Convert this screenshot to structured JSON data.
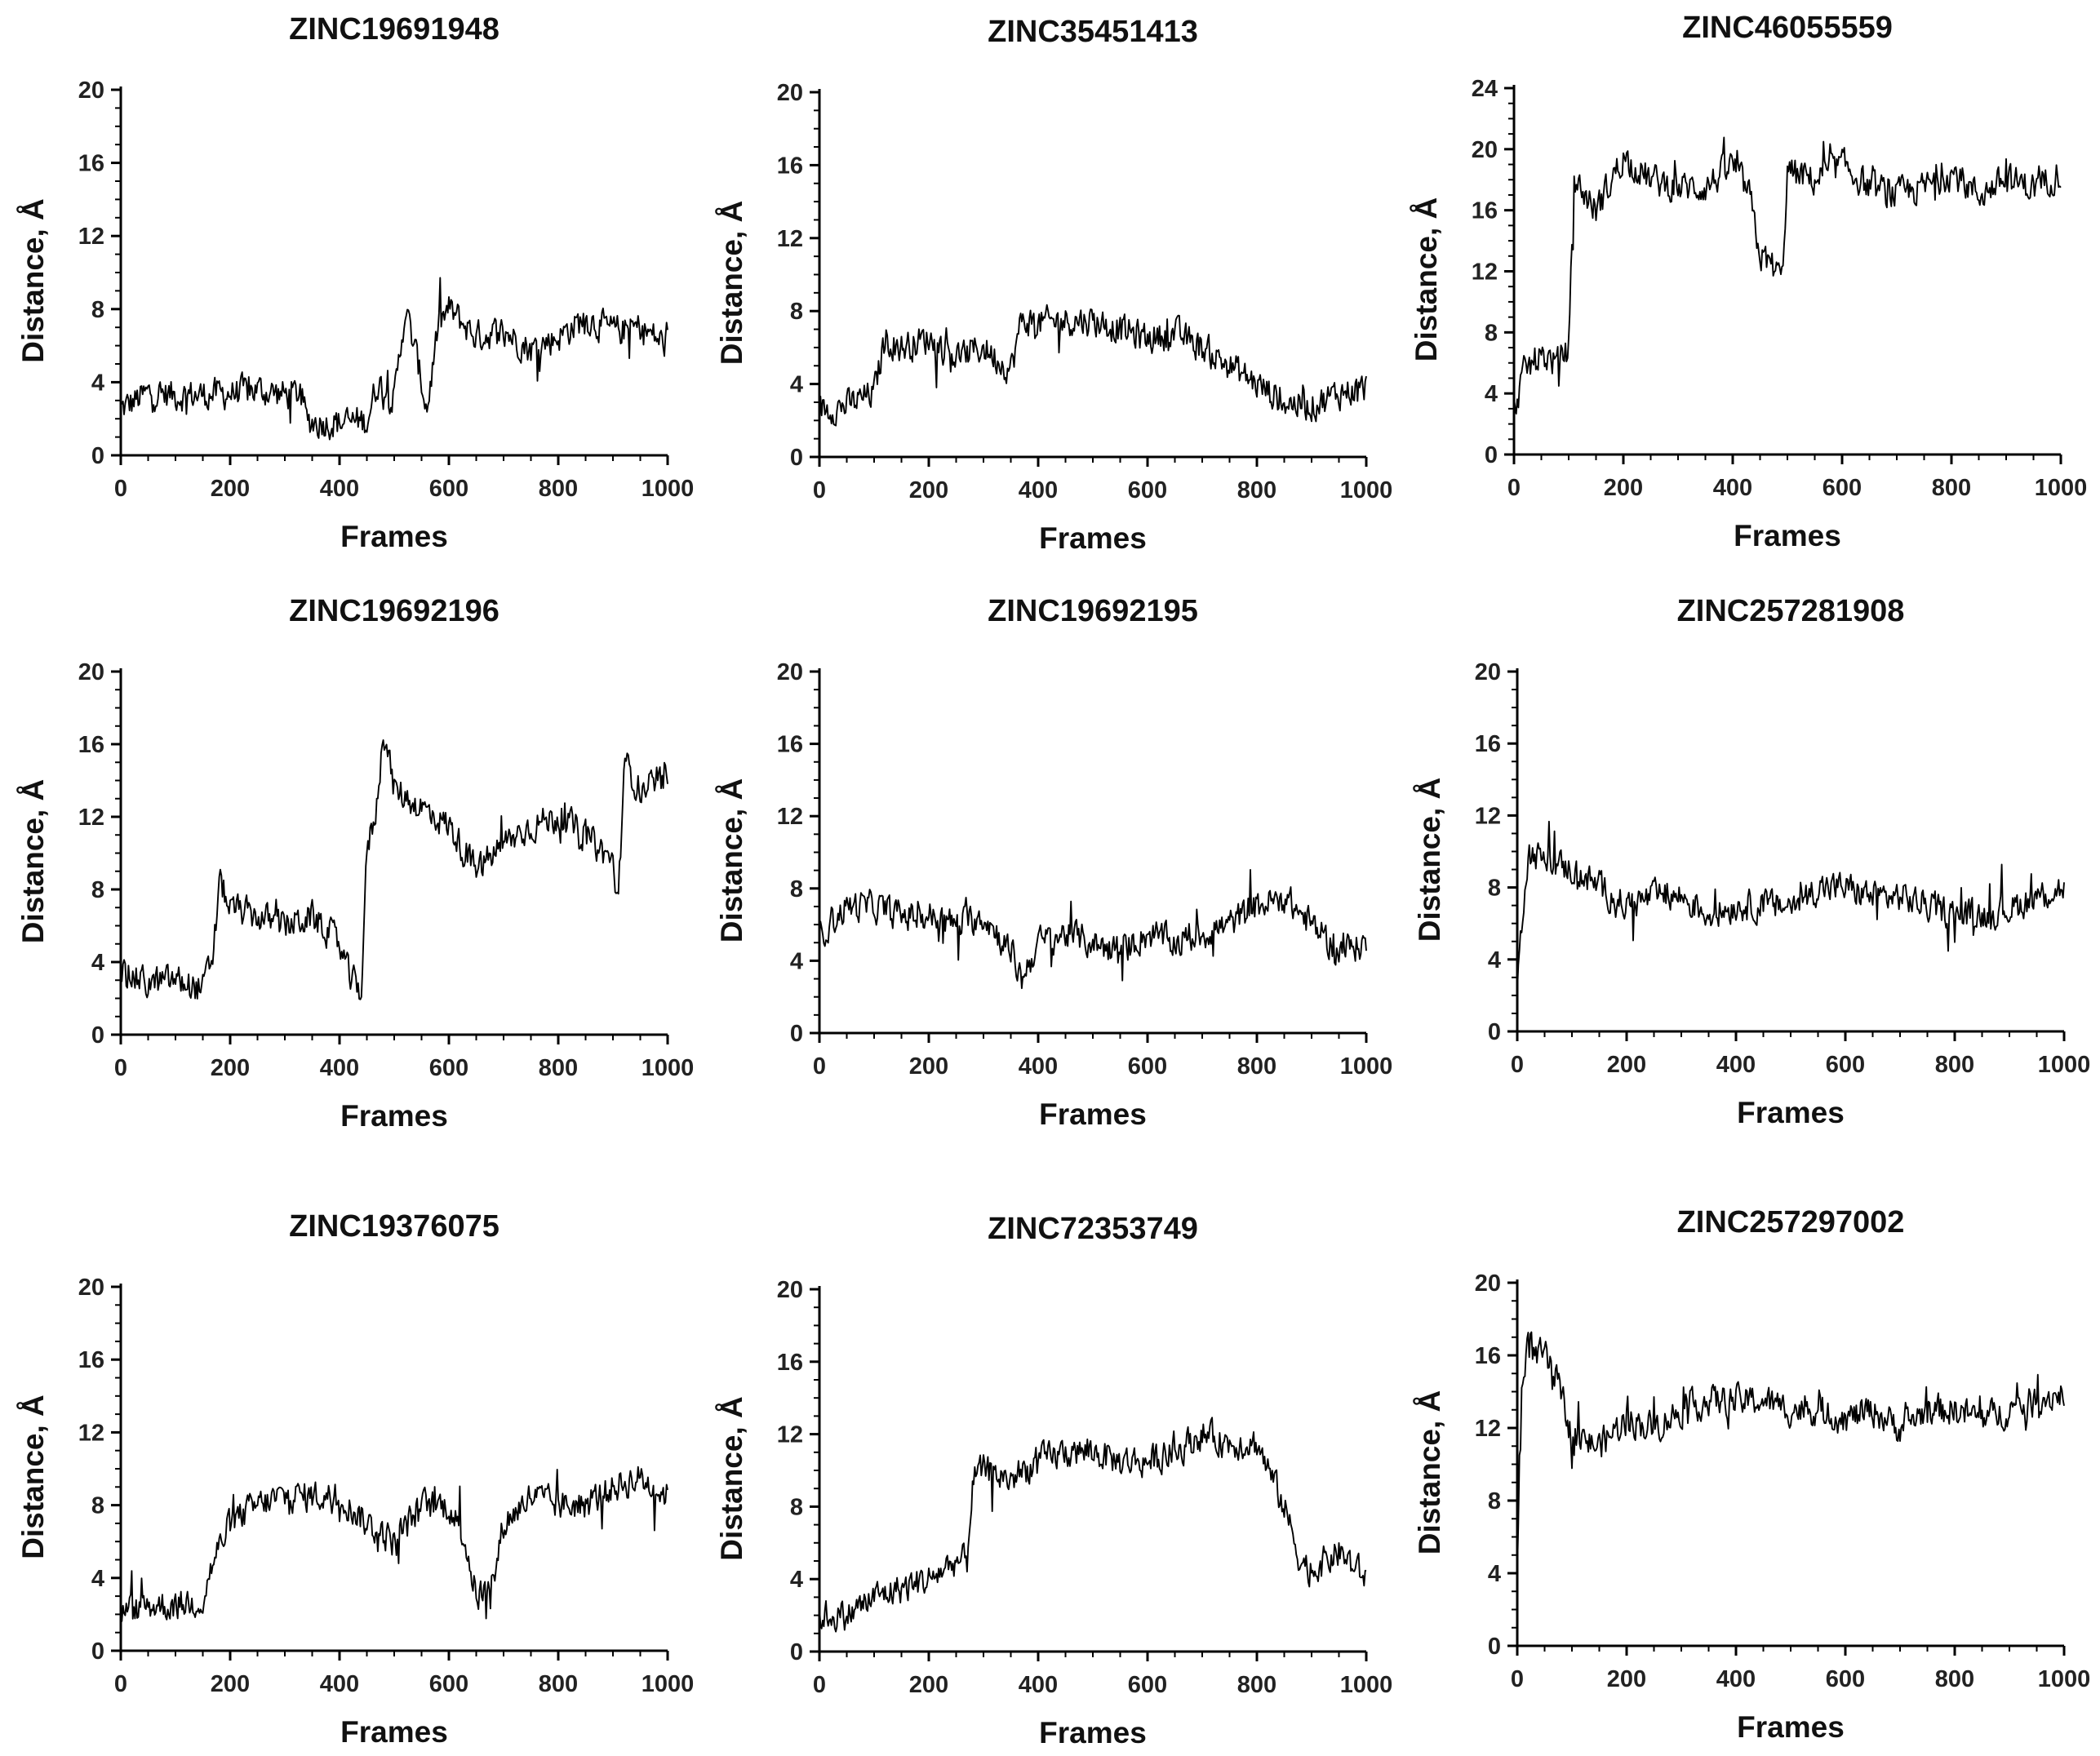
{
  "chart_data": [
    {
      "type": "line",
      "title": "ZINC19691948",
      "xlabel": "Frames",
      "ylabel": "Distance, Å",
      "xlim": [
        0,
        1000
      ],
      "ylim": [
        0,
        20
      ],
      "xticks": [
        "0",
        "200",
        "400",
        "600",
        "800",
        "1000"
      ],
      "yticks": [
        "0",
        "4",
        "8",
        "12",
        "16",
        "20"
      ],
      "x": [
        0,
        50,
        100,
        150,
        200,
        250,
        300,
        330,
        340,
        360,
        400,
        450,
        470,
        500,
        520,
        540,
        560,
        580,
        600,
        650,
        700,
        750,
        800,
        850,
        900,
        950,
        1000
      ],
      "series": [
        {
          "name": "ZINC19691948",
          "values": [
            2.5,
            3.4,
            3.3,
            3.3,
            3.4,
            3.6,
            3.3,
            3.4,
            1.9,
            1.8,
            1.8,
            1.9,
            4.0,
            3.0,
            8.0,
            5.5,
            2.5,
            7.0,
            8.0,
            6.5,
            6.8,
            5.8,
            6.5,
            7.5,
            6.8,
            7.0,
            6.0
          ]
        }
      ]
    },
    {
      "type": "line",
      "title": "ZINC35451413",
      "xlabel": "Frames",
      "ylabel": "Distance, Å",
      "xlim": [
        0,
        1000
      ],
      "ylim": [
        0,
        20
      ],
      "xticks": [
        "0",
        "200",
        "400",
        "600",
        "800",
        "1000"
      ],
      "yticks": [
        "0",
        "4",
        "8",
        "12",
        "16",
        "20"
      ],
      "x": [
        0,
        50,
        100,
        120,
        150,
        200,
        250,
        300,
        350,
        370,
        400,
        450,
        500,
        550,
        600,
        650,
        700,
        750,
        800,
        850,
        900,
        950,
        1000
      ],
      "series": [
        {
          "name": "ZINC35451413",
          "values": [
            2.6,
            2.8,
            3.5,
            6.5,
            6.0,
            6.5,
            5.5,
            6.0,
            4.8,
            7.5,
            7.3,
            7.5,
            7.5,
            7.0,
            6.5,
            6.8,
            6.0,
            5.0,
            4.0,
            3.0,
            2.8,
            3.5,
            3.8
          ]
        }
      ]
    },
    {
      "type": "line",
      "title": "ZINC46055559",
      "xlabel": "Frames",
      "ylabel": "Distance, Å",
      "xlim": [
        0,
        1000
      ],
      "ylim": [
        0,
        24
      ],
      "xticks": [
        "0",
        "200",
        "400",
        "600",
        "800",
        "1000"
      ],
      "yticks": [
        "0",
        "4",
        "8",
        "12",
        "16",
        "20",
        "24"
      ],
      "x": [
        0,
        20,
        50,
        80,
        100,
        110,
        150,
        200,
        250,
        300,
        350,
        400,
        430,
        450,
        470,
        490,
        500,
        550,
        600,
        650,
        700,
        750,
        800,
        850,
        900,
        950,
        1000
      ],
      "series": [
        {
          "name": "ZINC46055559",
          "values": [
            3.0,
            5.5,
            6.5,
            6.0,
            7.0,
            18.0,
            16.0,
            19.5,
            18.0,
            17.5,
            17.5,
            19.0,
            17.0,
            13.0,
            12.5,
            11.5,
            18.5,
            18.0,
            19.0,
            17.5,
            17.0,
            17.5,
            18.5,
            17.0,
            18.0,
            17.5,
            18.5
          ]
        }
      ]
    },
    {
      "type": "line",
      "title": "ZINC19692196",
      "xlabel": "Frames",
      "ylabel": "Distance, Å",
      "xlim": [
        0,
        1000
      ],
      "ylim": [
        0,
        20
      ],
      "xticks": [
        "0",
        "200",
        "400",
        "600",
        "800",
        "1000"
      ],
      "yticks": [
        "0",
        "4",
        "8",
        "12",
        "16",
        "20"
      ],
      "x": [
        0,
        50,
        100,
        150,
        170,
        180,
        200,
        250,
        300,
        350,
        400,
        420,
        440,
        450,
        470,
        480,
        500,
        550,
        600,
        650,
        700,
        750,
        800,
        850,
        900,
        910,
        920,
        950,
        1000
      ],
      "series": [
        {
          "name": "ZINC19692196",
          "values": [
            3.5,
            2.8,
            3.0,
            2.5,
            4.5,
            8.5,
            7.0,
            6.5,
            6.0,
            6.5,
            5.0,
            3.0,
            2.5,
            10.0,
            13.0,
            17.0,
            13.5,
            12.5,
            11.5,
            9.0,
            10.5,
            11.5,
            12.0,
            11.0,
            9.5,
            7.0,
            15.0,
            13.5,
            14.0
          ]
        }
      ]
    },
    {
      "type": "line",
      "title": "ZINC19692195",
      "xlabel": "Frames",
      "ylabel": "Distance, Å",
      "xlim": [
        0,
        1000
      ],
      "ylim": [
        0,
        20
      ],
      "xticks": [
        "0",
        "200",
        "400",
        "600",
        "800",
        "1000"
      ],
      "yticks": [
        "0",
        "4",
        "8",
        "12",
        "16",
        "20"
      ],
      "x": [
        0,
        50,
        100,
        150,
        200,
        250,
        300,
        350,
        370,
        400,
        450,
        500,
        550,
        600,
        650,
        700,
        750,
        800,
        850,
        900,
        950,
        1000
      ],
      "series": [
        {
          "name": "ZINC19692195",
          "values": [
            5.5,
            7.0,
            7.0,
            6.5,
            6.5,
            6.0,
            6.5,
            4.5,
            3.0,
            5.0,
            5.5,
            5.0,
            4.5,
            5.5,
            5.0,
            5.5,
            6.0,
            7.0,
            7.5,
            6.0,
            4.5,
            5.0
          ]
        }
      ]
    },
    {
      "type": "line",
      "title": "ZINC257281908",
      "xlabel": "Frames",
      "ylabel": "Distance, Å",
      "xlim": [
        0,
        1000
      ],
      "ylim": [
        0,
        20
      ],
      "xticks": [
        "0",
        "200",
        "400",
        "600",
        "800",
        "1000"
      ],
      "yticks": [
        "0",
        "4",
        "8",
        "12",
        "16",
        "20"
      ],
      "x": [
        0,
        10,
        20,
        50,
        100,
        150,
        200,
        250,
        300,
        350,
        400,
        450,
        500,
        550,
        600,
        650,
        700,
        750,
        800,
        850,
        900,
        950,
        1000
      ],
      "series": [
        {
          "name": "ZINC257281908",
          "values": [
            2.0,
            7.0,
            10.0,
            9.5,
            9.0,
            8.0,
            7.0,
            7.5,
            7.5,
            6.5,
            7.0,
            7.0,
            7.0,
            8.0,
            8.0,
            7.5,
            7.5,
            7.0,
            6.5,
            6.5,
            6.8,
            7.5,
            8.0
          ]
        }
      ]
    },
    {
      "type": "line",
      "title": "ZINC19376075",
      "xlabel": "Frames",
      "ylabel": "Distance, Å",
      "xlim": [
        0,
        1000
      ],
      "ylim": [
        0,
        20
      ],
      "xticks": [
        "0",
        "200",
        "400",
        "600",
        "800",
        "1000"
      ],
      "yticks": [
        "0",
        "4",
        "8",
        "12",
        "16",
        "20"
      ],
      "x": [
        0,
        50,
        100,
        150,
        170,
        200,
        250,
        300,
        350,
        400,
        450,
        500,
        550,
        600,
        630,
        650,
        680,
        700,
        750,
        800,
        850,
        900,
        950,
        1000
      ],
      "series": [
        {
          "name": "ZINC19376075",
          "values": [
            2.0,
            2.5,
            2.5,
            2.8,
            5.0,
            7.0,
            8.0,
            8.5,
            8.5,
            8.5,
            7.0,
            6.0,
            8.0,
            8.0,
            6.0,
            3.0,
            3.5,
            7.0,
            8.5,
            8.0,
            8.0,
            9.0,
            9.5,
            8.5
          ]
        }
      ]
    },
    {
      "type": "line",
      "title": "ZINC72353749",
      "xlabel": "Frames",
      "ylabel": "Distance, Å",
      "xlim": [
        0,
        1000
      ],
      "ylim": [
        0,
        20
      ],
      "xticks": [
        "0",
        "200",
        "400",
        "600",
        "800",
        "1000"
      ],
      "yticks": [
        "0",
        "4",
        "8",
        "12",
        "16",
        "20"
      ],
      "x": [
        0,
        50,
        100,
        150,
        200,
        250,
        270,
        280,
        300,
        350,
        400,
        450,
        500,
        550,
        600,
        650,
        700,
        750,
        800,
        850,
        880,
        900,
        950,
        1000
      ],
      "series": [
        {
          "name": "ZINC72353749",
          "values": [
            2.0,
            2.0,
            3.0,
            3.5,
            4.0,
            5.0,
            5.0,
            9.5,
            10.0,
            9.5,
            10.5,
            11.0,
            11.0,
            10.5,
            10.5,
            11.0,
            12.0,
            11.5,
            11.5,
            8.0,
            5.0,
            4.5,
            5.5,
            4.0
          ]
        }
      ]
    },
    {
      "type": "line",
      "title": "ZINC257297002",
      "xlabel": "Frames",
      "ylabel": "Distance, Å",
      "xlim": [
        0,
        1000
      ],
      "ylim": [
        0,
        20
      ],
      "xticks": [
        "0",
        "200",
        "400",
        "600",
        "800",
        "1000"
      ],
      "yticks": [
        "0",
        "4",
        "8",
        "12",
        "16",
        "20"
      ],
      "x": [
        0,
        5,
        10,
        20,
        30,
        50,
        80,
        100,
        150,
        200,
        250,
        300,
        350,
        400,
        450,
        500,
        550,
        600,
        650,
        700,
        750,
        800,
        850,
        900,
        950,
        1000
      ],
      "series": [
        {
          "name": "ZINC257297002",
          "values": [
            4.0,
            12.0,
            15.0,
            17.0,
            16.0,
            16.0,
            14.0,
            11.5,
            11.0,
            12.5,
            12.0,
            13.0,
            13.5,
            13.5,
            13.5,
            13.0,
            13.0,
            12.5,
            13.0,
            12.0,
            13.0,
            13.0,
            12.5,
            13.0,
            13.5,
            14.0
          ]
        }
      ]
    }
  ]
}
